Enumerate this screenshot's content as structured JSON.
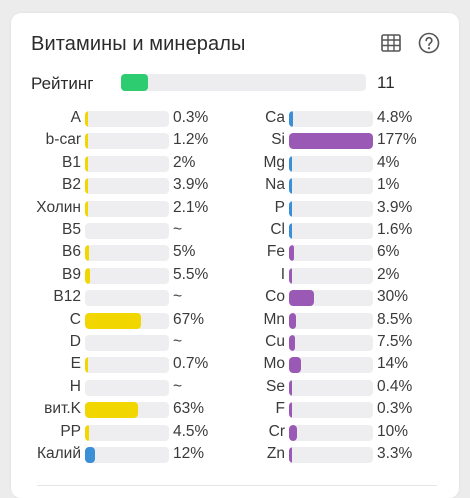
{
  "header": {
    "title": "Витамины и минералы",
    "table_icon": "table-icon",
    "help_icon": "help-circle-icon"
  },
  "rating": {
    "label": "Рейтинг",
    "value": "11",
    "fraction": 0.11,
    "color": "#2ecc71"
  },
  "colors": {
    "vitamin": "#f2d600",
    "mineral_blue": "#3a8fd6",
    "mineral_purple": "#9b59b6",
    "track": "#eeeef1"
  },
  "vitamins": [
    {
      "label": "A",
      "value": "0.3%",
      "percent": 0.3
    },
    {
      "label": "b-car",
      "value": "1.2%",
      "percent": 1.2
    },
    {
      "label": "B1",
      "value": "2%",
      "percent": 2
    },
    {
      "label": "B2",
      "value": "3.9%",
      "percent": 3.9
    },
    {
      "label": "Холин",
      "value": "2.1%",
      "percent": 2.1
    },
    {
      "label": "B5",
      "value": "~",
      "percent": 0
    },
    {
      "label": "B6",
      "value": "5%",
      "percent": 5
    },
    {
      "label": "B9",
      "value": "5.5%",
      "percent": 5.5
    },
    {
      "label": "B12",
      "value": "~",
      "percent": 0
    },
    {
      "label": "C",
      "value": "67%",
      "percent": 67
    },
    {
      "label": "D",
      "value": "~",
      "percent": 0
    },
    {
      "label": "E",
      "value": "0.7%",
      "percent": 0.7
    },
    {
      "label": "H",
      "value": "~",
      "percent": 0
    },
    {
      "label": "вит.K",
      "value": "63%",
      "percent": 63
    },
    {
      "label": "PP",
      "value": "4.5%",
      "percent": 4.5
    },
    {
      "label": "Калий",
      "value": "12%",
      "percent": 12,
      "color": "#3a8fd6"
    }
  ],
  "minerals": [
    {
      "label": "Ca",
      "value": "4.8%",
      "percent": 4.8,
      "color": "#3a8fd6"
    },
    {
      "label": "Si",
      "value": "177%",
      "percent": 177,
      "color": "#9b59b6"
    },
    {
      "label": "Mg",
      "value": "4%",
      "percent": 4,
      "color": "#3a8fd6"
    },
    {
      "label": "Na",
      "value": "1%",
      "percent": 1,
      "color": "#3a8fd6"
    },
    {
      "label": "P",
      "value": "3.9%",
      "percent": 3.9,
      "color": "#3a8fd6"
    },
    {
      "label": "Cl",
      "value": "1.6%",
      "percent": 1.6,
      "color": "#3a8fd6"
    },
    {
      "label": "Fe",
      "value": "6%",
      "percent": 6,
      "color": "#9b59b6"
    },
    {
      "label": "I",
      "value": "2%",
      "percent": 2,
      "color": "#9b59b6"
    },
    {
      "label": "Co",
      "value": "30%",
      "percent": 30,
      "color": "#9b59b6"
    },
    {
      "label": "Mn",
      "value": "8.5%",
      "percent": 8.5,
      "color": "#9b59b6"
    },
    {
      "label": "Cu",
      "value": "7.5%",
      "percent": 7.5,
      "color": "#9b59b6"
    },
    {
      "label": "Mo",
      "value": "14%",
      "percent": 14,
      "color": "#9b59b6"
    },
    {
      "label": "Se",
      "value": "0.4%",
      "percent": 0.4,
      "color": "#9b59b6"
    },
    {
      "label": "F",
      "value": "0.3%",
      "percent": 0.3,
      "color": "#9b59b6"
    },
    {
      "label": "Cr",
      "value": "10%",
      "percent": 10,
      "color": "#9b59b6"
    },
    {
      "label": "Zn",
      "value": "3.3%",
      "percent": 3.3,
      "color": "#9b59b6"
    }
  ]
}
